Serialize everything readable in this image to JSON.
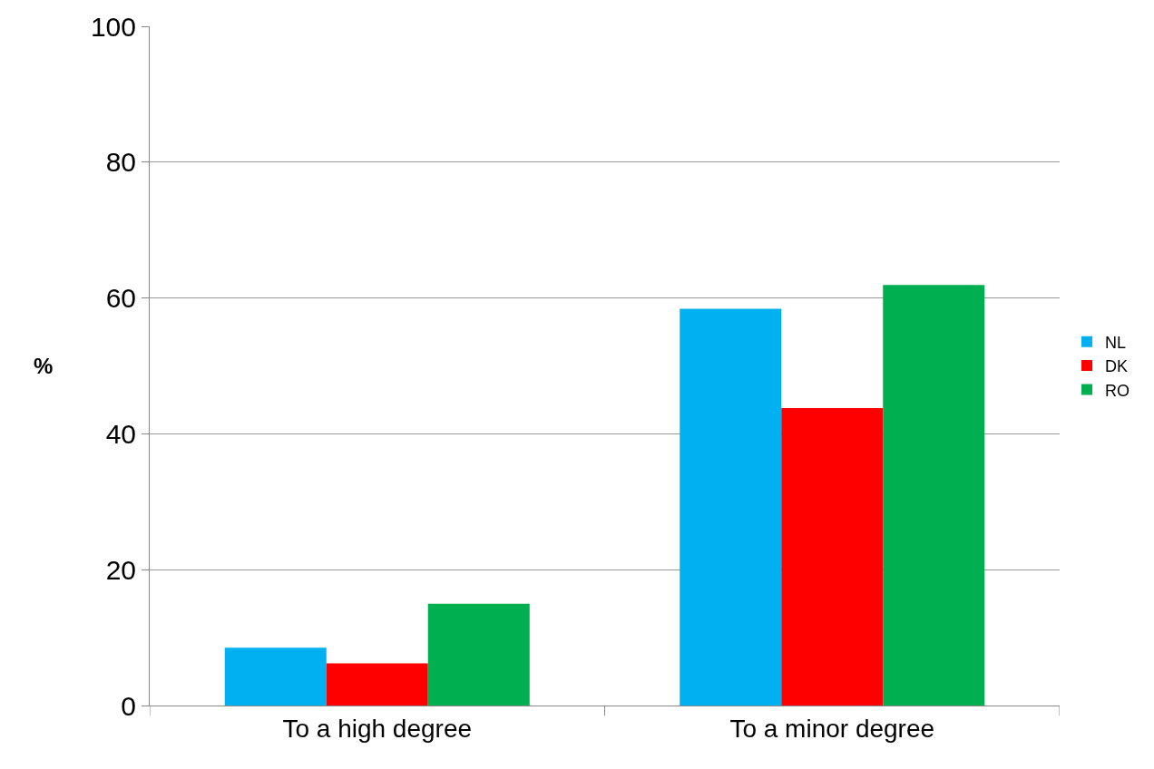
{
  "chart_data": {
    "type": "bar",
    "ylabel": "%",
    "categories": [
      "To a high degree",
      "To a minor degree"
    ],
    "series": [
      {
        "name": "NL",
        "color": "#00b0f0",
        "values": [
          8.5,
          58.4
        ]
      },
      {
        "name": "DK",
        "color": "#ff0000",
        "values": [
          6.2,
          43.8
        ]
      },
      {
        "name": "RO",
        "color": "#00b050",
        "values": [
          15.0,
          61.9
        ]
      }
    ],
    "ylim": [
      0,
      100
    ],
    "yticks": [
      0,
      20,
      40,
      60,
      80,
      100
    ],
    "grid": "y",
    "legend": "right"
  }
}
